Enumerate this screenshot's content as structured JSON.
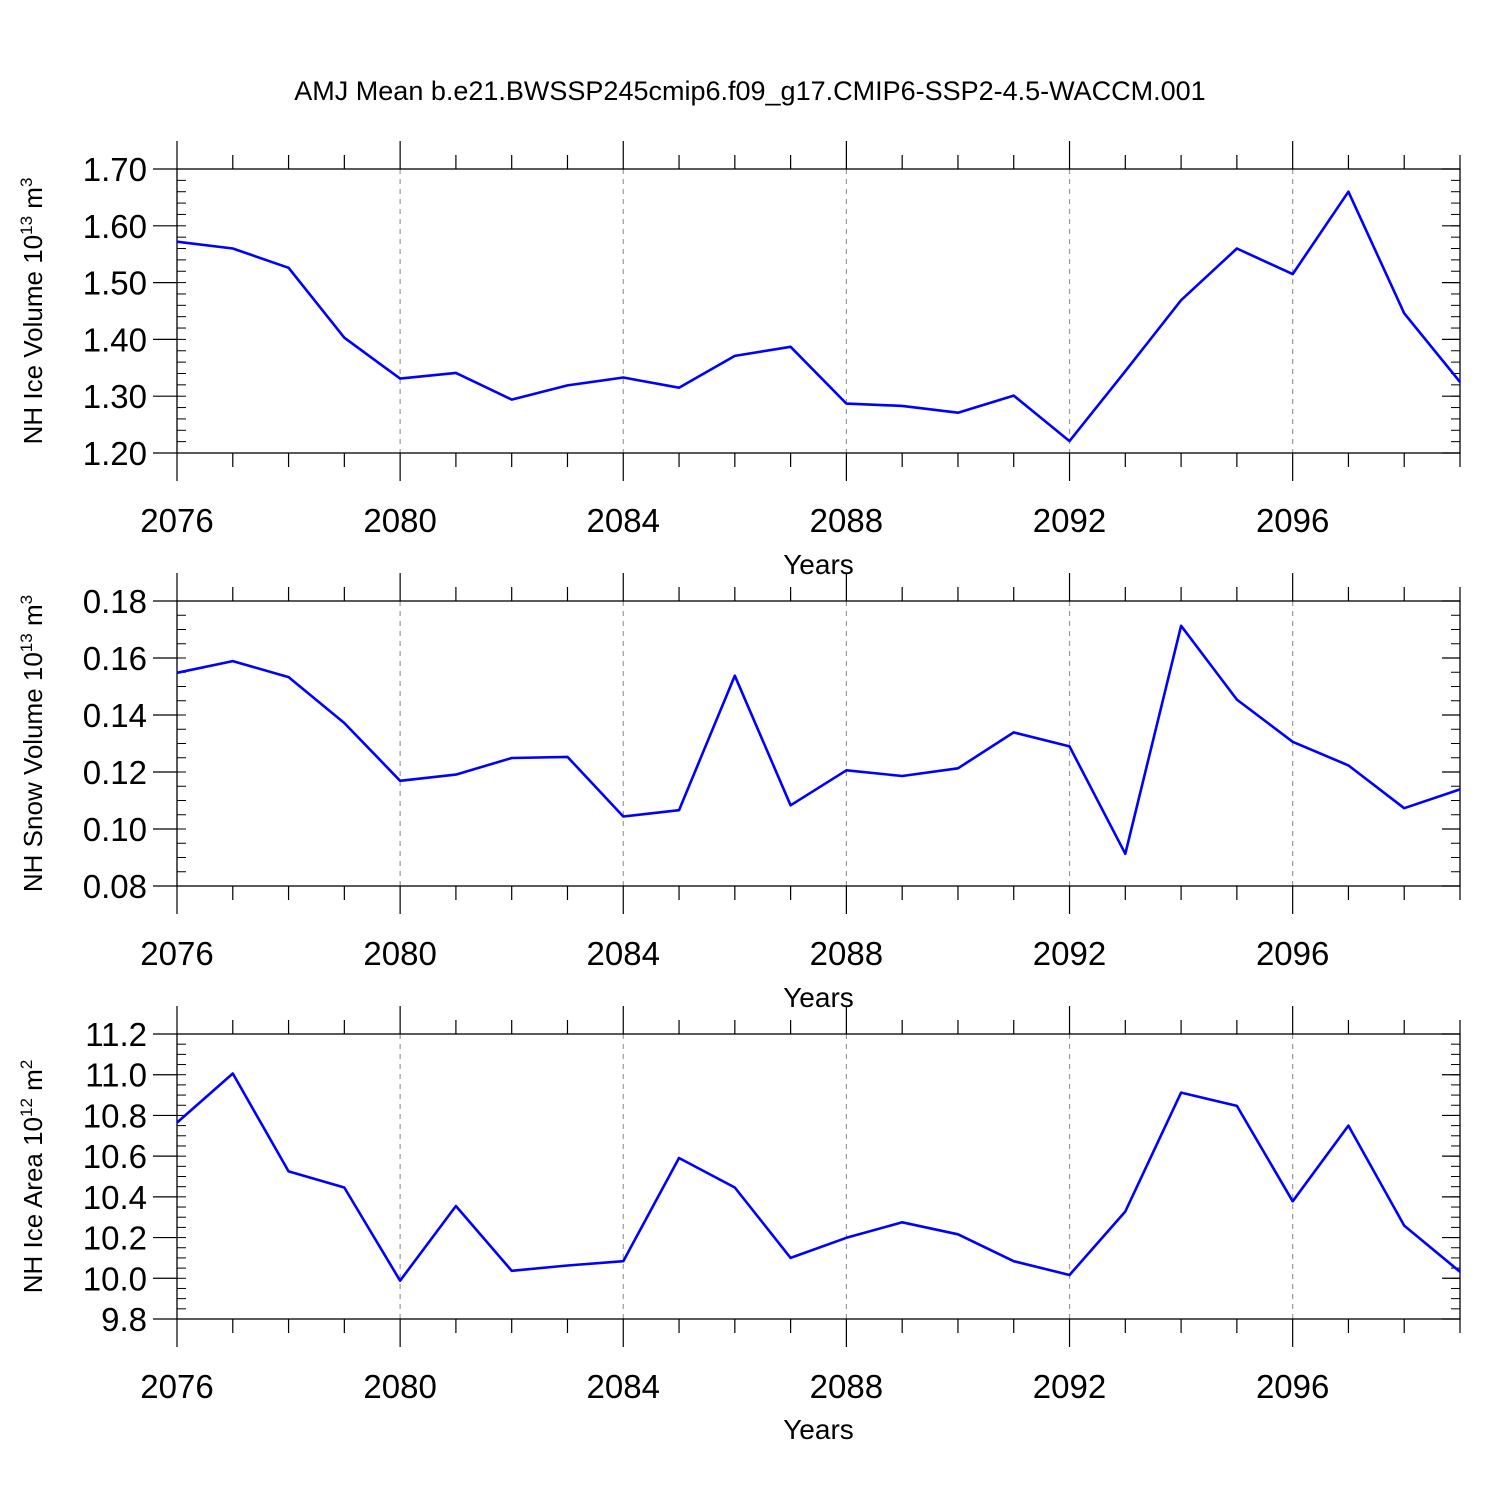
{
  "title": "AMJ Mean b.e21.BWSSP245cmip6.f09_g17.CMIP6-SSP2-4.5-WACCM.001",
  "line_color": "#0000ff",
  "chart_data": [
    {
      "type": "line",
      "xlabel": "Years",
      "ylabel_main": "NH Ice Volume 10",
      "ylabel_exp": "13",
      "ylabel_unit": " m",
      "ylabel_unit_exp": "3",
      "xlim": [
        2076,
        2099
      ],
      "ylim": [
        1.2,
        1.7
      ],
      "x_ticks": [
        2076,
        2080,
        2084,
        2088,
        2092,
        2096
      ],
      "x_tick_labels": [
        "2076",
        "2080",
        "2084",
        "2088",
        "2092",
        "2096"
      ],
      "y_ticks": [
        1.2,
        1.3,
        1.4,
        1.5,
        1.6,
        1.7
      ],
      "y_tick_labels": [
        "1.20",
        "1.30",
        "1.40",
        "1.50",
        "1.60",
        "1.70"
      ],
      "y_minor_step": 0.02,
      "grid": "dashed vertical at major x ticks",
      "x": [
        2076,
        2077,
        2078,
        2079,
        2080,
        2081,
        2082,
        2083,
        2084,
        2085,
        2086,
        2087,
        2088,
        2089,
        2090,
        2091,
        2092,
        2093,
        2094,
        2095,
        2096,
        2097,
        2098,
        2099
      ],
      "values": [
        1.572,
        1.56,
        1.526,
        1.403,
        1.331,
        1.341,
        1.294,
        1.319,
        1.333,
        1.315,
        1.371,
        1.387,
        1.287,
        1.283,
        1.271,
        1.301,
        1.221,
        1.344,
        1.469,
        1.56,
        1.515,
        1.66,
        1.446,
        1.325
      ]
    },
    {
      "type": "line",
      "xlabel": "Years",
      "ylabel_main": "NH Snow Volume 10",
      "ylabel_exp": "13",
      "ylabel_unit": " m",
      "ylabel_unit_exp": "3",
      "xlim": [
        2076,
        2099
      ],
      "ylim": [
        0.08,
        0.18
      ],
      "x_ticks": [
        2076,
        2080,
        2084,
        2088,
        2092,
        2096
      ],
      "x_tick_labels": [
        "2076",
        "2080",
        "2084",
        "2088",
        "2092",
        "2096"
      ],
      "y_ticks": [
        0.08,
        0.1,
        0.12,
        0.14,
        0.16,
        0.18
      ],
      "y_tick_labels": [
        "0.08",
        "0.10",
        "0.12",
        "0.14",
        "0.16",
        "0.18"
      ],
      "y_minor_step": 0.005,
      "grid": "dashed vertical at major x ticks",
      "x": [
        2076,
        2077,
        2078,
        2079,
        2080,
        2081,
        2082,
        2083,
        2084,
        2085,
        2086,
        2087,
        2088,
        2089,
        2090,
        2091,
        2092,
        2093,
        2094,
        2095,
        2096,
        2097,
        2098,
        2099
      ],
      "values": [
        0.1548,
        0.1589,
        0.1533,
        0.1372,
        0.1169,
        0.1191,
        0.1249,
        0.1253,
        0.1044,
        0.1066,
        0.1538,
        0.1083,
        0.1206,
        0.1186,
        0.1213,
        0.1339,
        0.129,
        0.0913,
        0.1713,
        0.1454,
        0.1306,
        0.1223,
        0.1073,
        0.1139
      ]
    },
    {
      "type": "line",
      "xlabel": "Years",
      "ylabel_main": "NH Ice Area 10",
      "ylabel_exp": "12",
      "ylabel_unit": " m",
      "ylabel_unit_exp": "2",
      "xlim": [
        2076,
        2099
      ],
      "ylim": [
        9.8,
        11.2
      ],
      "x_ticks": [
        2076,
        2080,
        2084,
        2088,
        2092,
        2096
      ],
      "x_tick_labels": [
        "2076",
        "2080",
        "2084",
        "2088",
        "2092",
        "2096"
      ],
      "y_ticks": [
        9.8,
        10.0,
        10.2,
        10.4,
        10.6,
        10.8,
        11.0,
        11.2
      ],
      "y_tick_labels": [
        "9.8",
        "10.0",
        "10.2",
        "10.4",
        "10.6",
        "10.8",
        "11.0",
        "11.2"
      ],
      "y_minor_step": 0.05,
      "grid": "dashed vertical at major x ticks",
      "x": [
        2076,
        2077,
        2078,
        2079,
        2080,
        2081,
        2082,
        2083,
        2084,
        2085,
        2086,
        2087,
        2088,
        2089,
        2090,
        2091,
        2092,
        2093,
        2094,
        2095,
        2096,
        2097,
        2098,
        2099
      ],
      "values": [
        10.765,
        11.006,
        10.525,
        10.446,
        9.988,
        10.355,
        10.037,
        10.063,
        10.084,
        10.591,
        10.446,
        10.1,
        10.199,
        10.275,
        10.216,
        10.084,
        10.016,
        10.328,
        10.912,
        10.847,
        10.378,
        10.75,
        10.259,
        10.032
      ]
    }
  ]
}
